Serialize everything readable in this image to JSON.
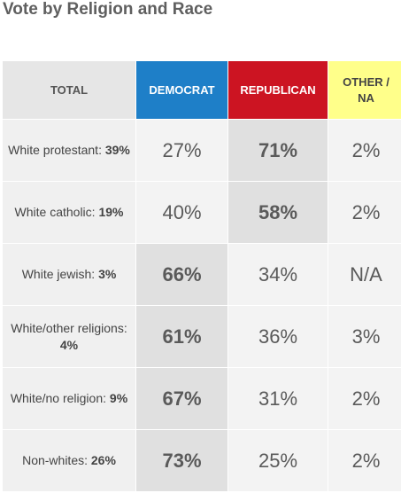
{
  "title": "Vote by Religion and Race",
  "chart_data": {
    "type": "table",
    "title": "Vote by Religion and Race",
    "columns": [
      "TOTAL",
      "DEMOCRAT",
      "REPUBLICAN",
      "OTHER / NA"
    ],
    "column_colors": {
      "DEMOCRAT": "#1e7fc8",
      "REPUBLICAN": "#cc1422",
      "OTHER / NA": "#ffff8a"
    },
    "rows": [
      {
        "label": "White protestant:",
        "share": "39%",
        "democrat": "27%",
        "republican": "71%",
        "other": "2%",
        "winner": "republican"
      },
      {
        "label": "White catholic:",
        "share": "19%",
        "democrat": "40%",
        "republican": "58%",
        "other": "2%",
        "winner": "republican"
      },
      {
        "label": "White jewish:",
        "share": "3%",
        "democrat": "66%",
        "republican": "34%",
        "other": "N/A",
        "winner": "democrat"
      },
      {
        "label": "White/other religions:",
        "share": "4%",
        "democrat": "61%",
        "republican": "36%",
        "other": "3%",
        "winner": "democrat"
      },
      {
        "label": "White/no religion:",
        "share": "9%",
        "democrat": "67%",
        "republican": "31%",
        "other": "2%",
        "winner": "democrat"
      },
      {
        "label": "Non-whites:",
        "share": "26%",
        "democrat": "73%",
        "republican": "25%",
        "other": "2%",
        "winner": "democrat"
      }
    ]
  }
}
